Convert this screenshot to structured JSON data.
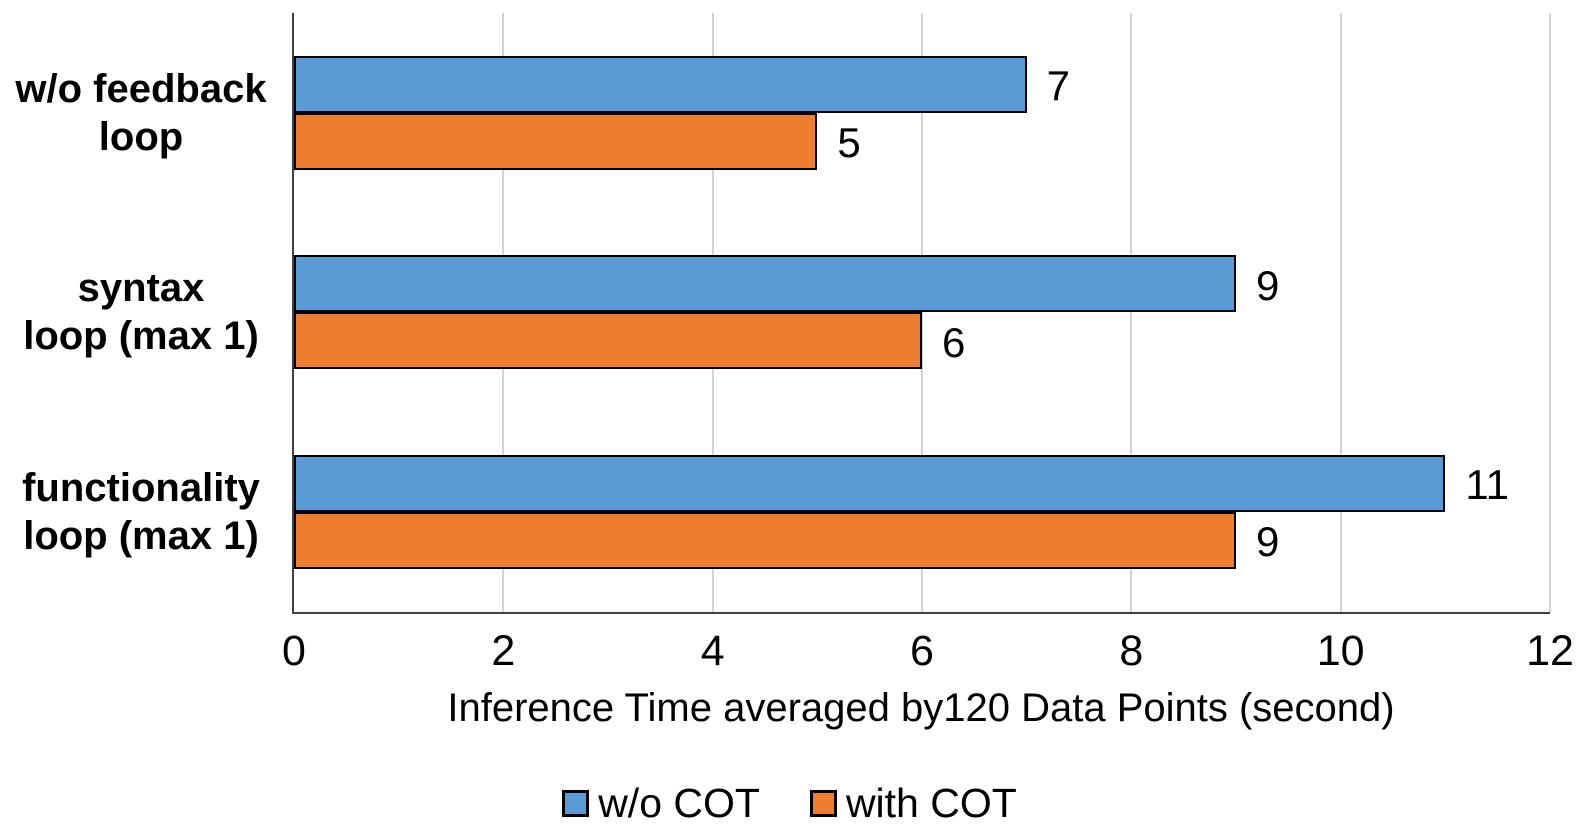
{
  "chart_data": {
    "type": "bar",
    "orientation": "horizontal",
    "title": "",
    "xlabel": "Inference Time averaged by120 Data Points (second)",
    "ylabel": "",
    "xlim": [
      0,
      12
    ],
    "xticks": [
      0,
      2,
      4,
      6,
      8,
      10,
      12
    ],
    "grid": true,
    "legend_position": "bottom",
    "categories": [
      "w/o feedback\nloop",
      "syntax\nloop (max 1)",
      "functionality\nloop (max 1)"
    ],
    "series": [
      {
        "name": "w/o COT",
        "color": "#5B9BD5",
        "values": [
          7,
          9,
          11
        ]
      },
      {
        "name": "with COT",
        "color": "#ED7D31",
        "values": [
          5,
          6,
          9
        ]
      }
    ],
    "data_labels_shown": true,
    "colors": {
      "bar_border": "#000000",
      "gridline": "#d2d2d2",
      "axis_line": "#404040",
      "text": "#000000",
      "background": "#ffffff"
    }
  }
}
